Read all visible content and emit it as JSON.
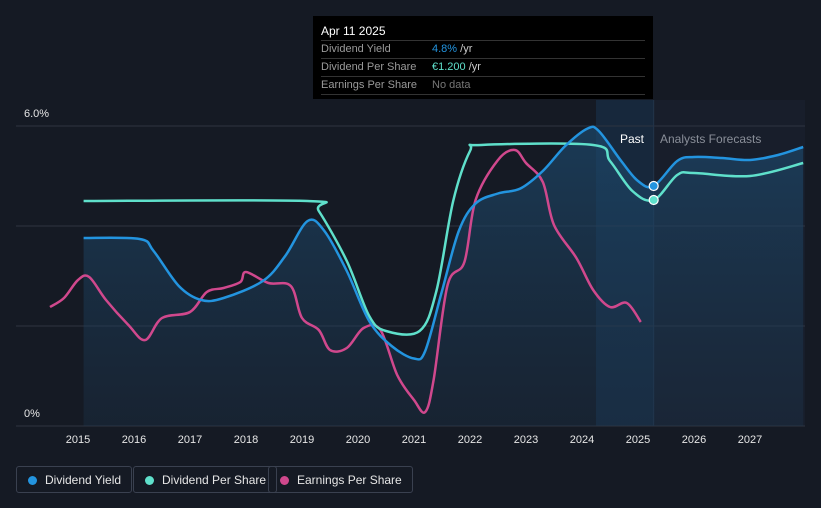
{
  "chart_data": {
    "type": "line",
    "y_tick_labels": [
      "6.0%",
      "0%"
    ],
    "ylim": [
      0,
      6
    ],
    "xlim": [
      2014.3,
      2027.95
    ],
    "x_tick_labels": [
      "2015",
      "2016",
      "2017",
      "2018",
      "2019",
      "2020",
      "2021",
      "2022",
      "2023",
      "2024",
      "2025",
      "2026",
      "2027"
    ],
    "past_label": "Past",
    "forecast_label": "Analysts Forecasts",
    "forecast_start": 2025.28,
    "series": [
      {
        "name": "Dividend Yield",
        "color": "#2394df",
        "fill": true,
        "points": [
          [
            2015.1,
            3.76
          ],
          [
            2016.1,
            3.74
          ],
          [
            2016.35,
            3.5
          ],
          [
            2016.8,
            2.8
          ],
          [
            2017.2,
            2.52
          ],
          [
            2017.6,
            2.56
          ],
          [
            2018.3,
            2.9
          ],
          [
            2018.7,
            3.4
          ],
          [
            2019.1,
            4.1
          ],
          [
            2019.4,
            3.9
          ],
          [
            2019.8,
            3.1
          ],
          [
            2020.2,
            2.1
          ],
          [
            2020.6,
            1.6
          ],
          [
            2021.0,
            1.35
          ],
          [
            2021.2,
            1.5
          ],
          [
            2021.5,
            2.7
          ],
          [
            2021.8,
            3.9
          ],
          [
            2022.1,
            4.45
          ],
          [
            2022.5,
            4.65
          ],
          [
            2022.9,
            4.75
          ],
          [
            2023.3,
            5.1
          ],
          [
            2023.7,
            5.6
          ],
          [
            2024.1,
            5.95
          ],
          [
            2024.3,
            5.9
          ],
          [
            2024.7,
            5.3
          ],
          [
            2025.0,
            4.9
          ],
          [
            2025.28,
            4.8
          ],
          [
            2025.7,
            5.3
          ],
          [
            2026.0,
            5.38
          ],
          [
            2026.5,
            5.36
          ],
          [
            2027.0,
            5.32
          ],
          [
            2027.5,
            5.42
          ],
          [
            2027.95,
            5.58
          ]
        ]
      },
      {
        "name": "Dividend Per Share",
        "color": "#5fe0cb",
        "fill": false,
        "points": [
          [
            2015.1,
            4.5
          ],
          [
            2019.1,
            4.5
          ],
          [
            2019.3,
            4.3
          ],
          [
            2019.8,
            3.3
          ],
          [
            2020.2,
            2.2
          ],
          [
            2020.5,
            1.9
          ],
          [
            2021.1,
            1.9
          ],
          [
            2021.4,
            2.7
          ],
          [
            2021.7,
            4.5
          ],
          [
            2022.0,
            5.5
          ],
          [
            2022.2,
            5.62
          ],
          [
            2024.2,
            5.62
          ],
          [
            2024.5,
            5.3
          ],
          [
            2024.9,
            4.7
          ],
          [
            2025.28,
            4.52
          ],
          [
            2025.7,
            5.02
          ],
          [
            2026.0,
            5.06
          ],
          [
            2027.0,
            5.0
          ],
          [
            2027.95,
            5.26
          ]
        ]
      },
      {
        "name": "Earnings Per Share",
        "color": "#d0488d",
        "fill": false,
        "points": [
          [
            2014.5,
            2.38
          ],
          [
            2014.75,
            2.56
          ],
          [
            2015.0,
            2.92
          ],
          [
            2015.2,
            2.98
          ],
          [
            2015.5,
            2.52
          ],
          [
            2015.9,
            2.02
          ],
          [
            2016.2,
            1.72
          ],
          [
            2016.5,
            2.16
          ],
          [
            2017.0,
            2.28
          ],
          [
            2017.3,
            2.68
          ],
          [
            2017.6,
            2.76
          ],
          [
            2017.9,
            2.88
          ],
          [
            2018.0,
            3.08
          ],
          [
            2018.4,
            2.86
          ],
          [
            2018.8,
            2.8
          ],
          [
            2019.0,
            2.16
          ],
          [
            2019.3,
            1.92
          ],
          [
            2019.5,
            1.52
          ],
          [
            2019.8,
            1.56
          ],
          [
            2020.1,
            1.96
          ],
          [
            2020.4,
            1.92
          ],
          [
            2020.7,
            1.02
          ],
          [
            2021.0,
            0.52
          ],
          [
            2021.2,
            0.28
          ],
          [
            2021.35,
            0.92
          ],
          [
            2021.6,
            2.82
          ],
          [
            2021.9,
            3.28
          ],
          [
            2022.1,
            4.52
          ],
          [
            2022.5,
            5.32
          ],
          [
            2022.8,
            5.52
          ],
          [
            2023.0,
            5.26
          ],
          [
            2023.3,
            4.88
          ],
          [
            2023.5,
            4.02
          ],
          [
            2023.9,
            3.36
          ],
          [
            2024.2,
            2.72
          ],
          [
            2024.5,
            2.38
          ],
          [
            2024.8,
            2.46
          ],
          [
            2025.05,
            2.08
          ]
        ]
      }
    ],
    "tooltip": {
      "date": "Apr 11 2025",
      "rows": [
        {
          "label": "Dividend Yield",
          "value": "4.8%",
          "unit": " /yr",
          "color": "#2394df"
        },
        {
          "label": "Dividend Per Share",
          "value": "€1.200",
          "unit": " /yr",
          "color": "#5fe0cb"
        },
        {
          "label": "Earnings Per Share",
          "value": "No data",
          "unit": "",
          "color": "#8a8a8a"
        }
      ]
    },
    "legend": [
      "Dividend Yield",
      "Dividend Per Share",
      "Earnings Per Share"
    ]
  }
}
